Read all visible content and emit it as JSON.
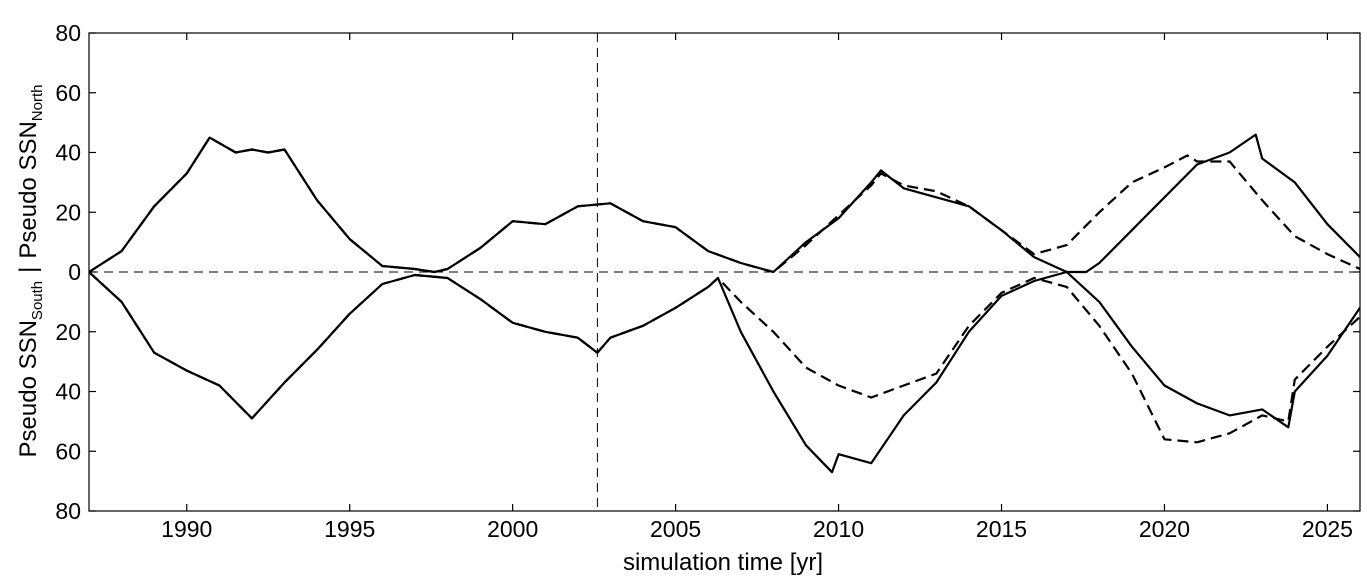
{
  "chart_data": {
    "type": "line",
    "title": "",
    "xlabel": "simulation time [yr]",
    "ylabel": {
      "south_text": "Pseudo SSN",
      "south_sub": "South",
      "separator": "|",
      "north_text": "Pseudo SSN",
      "north_sub": "North"
    },
    "xlim": [
      1987,
      2026
    ],
    "ylim": [
      -80,
      80
    ],
    "x_ticks": [
      1990,
      1995,
      2000,
      2005,
      2010,
      2015,
      2020,
      2025
    ],
    "x_tick_labels": [
      "1990",
      "1995",
      "2000",
      "2005",
      "2010",
      "2015",
      "2020",
      "2025"
    ],
    "y_ticks": [
      80,
      60,
      40,
      20,
      0,
      -20,
      -40,
      -60,
      -80
    ],
    "y_tick_labels": [
      "80",
      "60",
      "40",
      "20",
      "0",
      "20",
      "40",
      "60",
      "80"
    ],
    "grid": false,
    "reference_lines": {
      "vertical_x": 2002.6,
      "horizontal_y": 0
    },
    "series": [
      {
        "style": "solid",
        "hemisphere": "north",
        "x": [
          1987,
          1988,
          1989,
          1990,
          1990.7,
          1991.5,
          1992,
          1992.5,
          1993,
          1994,
          1995,
          1996,
          1997,
          1997.6,
          1998,
          1999,
          2000,
          2001,
          2002,
          2003,
          2004,
          2005,
          2006,
          2007,
          2008,
          2009,
          2010,
          2011,
          2011.3,
          2012,
          2013,
          2014,
          2015,
          2016,
          2017,
          2017.6,
          2018,
          2019,
          2020,
          2021,
          2022,
          2022.8,
          2023,
          2024,
          2025,
          2026
        ],
        "y": [
          0,
          7,
          22,
          33,
          45,
          40,
          41,
          40,
          41,
          24,
          11,
          2,
          1,
          0,
          1,
          8,
          17,
          16,
          22,
          23,
          17,
          15,
          7,
          3,
          0,
          10,
          18,
          30,
          34,
          28,
          25,
          22,
          14,
          5,
          0,
          0,
          3,
          14,
          25,
          36,
          40,
          46,
          38,
          30,
          16,
          5
        ]
      },
      {
        "style": "dashed",
        "hemisphere": "north",
        "x": [
          1987,
          1988,
          1989,
          1990,
          1990.7,
          1991.5,
          1992,
          1992.5,
          1993,
          1994,
          1995,
          1996,
          1997,
          1997.6,
          1998,
          1999,
          2000,
          2001,
          2002,
          2003,
          2004,
          2005,
          2006,
          2007,
          2008,
          2009,
          2010,
          2011,
          2011.3,
          2012,
          2013,
          2014,
          2015,
          2016,
          2017,
          2018,
          2019,
          2020,
          2020.7,
          2021,
          2022,
          2023,
          2024,
          2025,
          2026
        ],
        "y": [
          0,
          7,
          22,
          33,
          45,
          40,
          41,
          40,
          41,
          24,
          11,
          2,
          1,
          0,
          1,
          8,
          17,
          16,
          22,
          23,
          17,
          15,
          7,
          3,
          0,
          9,
          19,
          29,
          33,
          29,
          27,
          22,
          14,
          6,
          9,
          20,
          30,
          35,
          39,
          37,
          37,
          24,
          12,
          6,
          1
        ]
      },
      {
        "style": "solid",
        "hemisphere": "south",
        "x": [
          1987,
          1988,
          1989,
          1990,
          1991,
          1992,
          1993,
          1994,
          1995,
          1996,
          1997,
          1998,
          1999,
          2000,
          2001,
          2002,
          2002.6,
          2003,
          2004,
          2005,
          2006,
          2006.3,
          2007,
          2008,
          2009,
          2009.8,
          2010,
          2011,
          2012,
          2013,
          2014,
          2015,
          2016,
          2017,
          2018,
          2019,
          2020,
          2021,
          2022,
          2023,
          2023.8,
          2024,
          2025,
          2026
        ],
        "y": [
          0,
          -10,
          -27,
          -33,
          -38,
          -49,
          -37,
          -26,
          -14,
          -4,
          -1,
          -2,
          -9,
          -17,
          -20,
          -22,
          -27,
          -22,
          -18,
          -12,
          -5,
          -2,
          -20,
          -40,
          -58,
          -67,
          -61,
          -64,
          -48,
          -37,
          -20,
          -8,
          -3,
          0,
          -10,
          -25,
          -38,
          -44,
          -48,
          -46,
          -52,
          -40,
          -28,
          -12
        ]
      },
      {
        "style": "dashed",
        "hemisphere": "south",
        "x": [
          1987,
          1988,
          1989,
          1990,
          1991,
          1992,
          1993,
          1994,
          1995,
          1996,
          1997,
          1998,
          1999,
          2000,
          2001,
          2002,
          2002.6,
          2003,
          2004,
          2005,
          2006,
          2006.3,
          2007,
          2008,
          2009,
          2010,
          2011,
          2012,
          2013,
          2014,
          2015,
          2016,
          2017,
          2018,
          2019,
          2020,
          2021,
          2022,
          2023,
          2023.8,
          2024,
          2025,
          2026
        ],
        "y": [
          0,
          -10,
          -27,
          -33,
          -38,
          -49,
          -37,
          -26,
          -14,
          -4,
          -1,
          -2,
          -9,
          -17,
          -20,
          -22,
          -27,
          -22,
          -18,
          -12,
          -5,
          -2,
          -10,
          -20,
          -32,
          -38,
          -42,
          -38,
          -34,
          -18,
          -7,
          -2,
          -5,
          -18,
          -34,
          -56,
          -57,
          -54,
          -48,
          -50,
          -36,
          -25,
          -15
        ]
      }
    ]
  }
}
